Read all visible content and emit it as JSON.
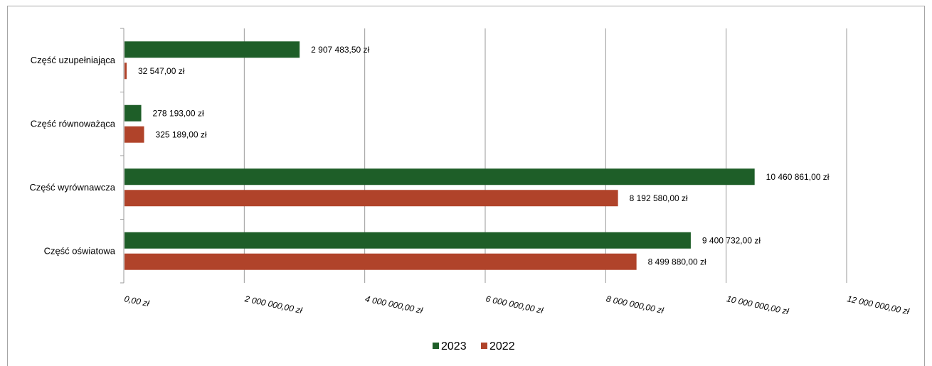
{
  "chart_data": {
    "type": "bar",
    "orientation": "horizontal",
    "categories": [
      "Część uzupełniająca",
      "Część równoważąca",
      "Część wyrównawcza",
      "Część oświatowa"
    ],
    "series": [
      {
        "name": "2023",
        "color": "#1e5e28",
        "values": [
          2907483.5,
          278193.0,
          10460861.0,
          9400732.0
        ],
        "labels": [
          "2 907 483,50 zł",
          "278 193,00 zł",
          "10 460 861,00 zł",
          "9 400 732,00 zł"
        ]
      },
      {
        "name": "2022",
        "color": "#b0432a",
        "values": [
          32547.0,
          325189.0,
          8192580.0,
          8499880.0
        ],
        "labels": [
          "32 547,00 zł",
          "325 189,00 zł",
          "8 192 580,00 zł",
          "8 499 880,00 zł"
        ]
      }
    ],
    "xlim": [
      0,
      12000000
    ],
    "xticks": [
      0,
      2000000,
      4000000,
      6000000,
      8000000,
      10000000,
      12000000
    ],
    "xtick_labels": [
      "0,00 zł",
      "2 000 000,00 zł",
      "4 000 000,00 zł",
      "6 000 000,00 zł",
      "8 000 000,00 zł",
      "10 000 000,00 zł",
      "12 000 000,00 zł"
    ],
    "grid": true,
    "legend": "bottom"
  }
}
